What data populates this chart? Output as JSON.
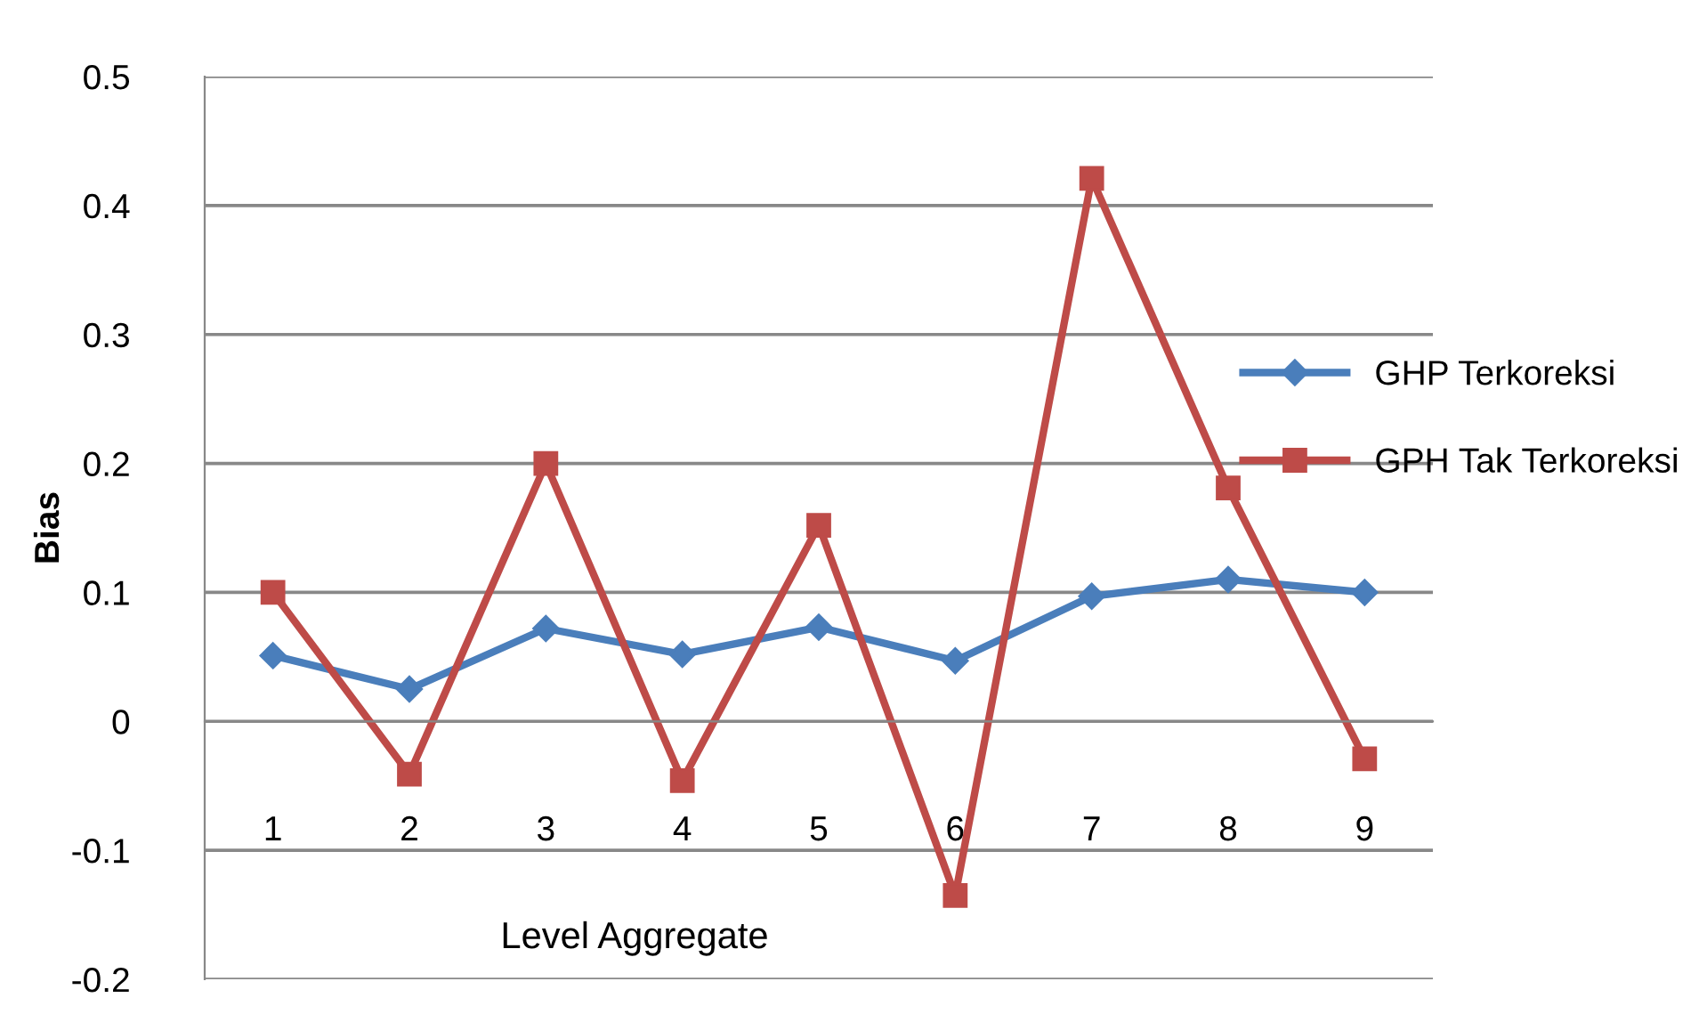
{
  "chart_data": {
    "type": "line",
    "ylabel": "Bias",
    "xlabel": "Level Aggregate",
    "categories": [
      "1",
      "2",
      "3",
      "4",
      "5",
      "6",
      "7",
      "8",
      "9"
    ],
    "series": [
      {
        "name": "GHP Terkoreksi",
        "color": "#4a7ebb",
        "marker": "diamond",
        "values": [
          0.051,
          0.025,
          0.072,
          0.052,
          0.073,
          0.047,
          0.097,
          0.11,
          0.1
        ]
      },
      {
        "name": "GPH Tak Terkoreksi",
        "color": "#be4b48",
        "marker": "square",
        "values": [
          0.1,
          -0.041,
          0.2,
          -0.046,
          0.152,
          -0.135,
          0.421,
          0.181,
          -0.029
        ]
      }
    ],
    "ylim": [
      -0.2,
      0.5
    ],
    "yticks": [
      -0.2,
      -0.1,
      0,
      0.1,
      0.2,
      0.3,
      0.4,
      0.5
    ],
    "grid": "y",
    "legend": "right",
    "line_style": "solid"
  }
}
